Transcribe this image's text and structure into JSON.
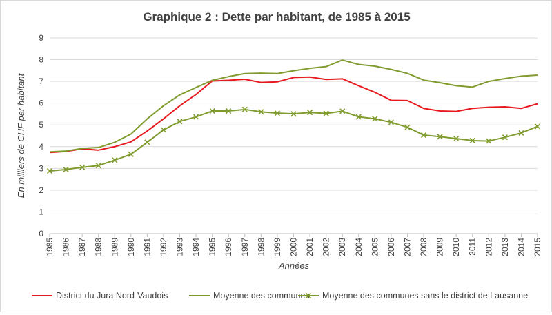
{
  "chart_data": {
    "type": "line",
    "title": "Graphique 2 : Dette par habitant, de 1985 à 2015",
    "xlabel": "Années",
    "ylabel": "En milliers de CHF par habitant",
    "ylim": [
      0,
      9
    ],
    "yticks": [
      0,
      1,
      2,
      3,
      4,
      5,
      6,
      7,
      8,
      9
    ],
    "grid": "horizontal",
    "legend_position": "bottom",
    "categories": [
      "1985",
      "1986",
      "1987",
      "1988",
      "1989",
      "1990",
      "1991",
      "1992",
      "1993",
      "1994",
      "1995",
      "1996",
      "1997",
      "1998",
      "1999",
      "2000",
      "2001",
      "2002",
      "2003",
      "2004",
      "2005",
      "2006",
      "2007",
      "2008",
      "2009",
      "2010",
      "2011",
      "2012",
      "2013",
      "2014",
      "2015"
    ],
    "series": [
      {
        "name": "District du Jura Nord-Vaudois",
        "color": "#e8191e",
        "marker": "none",
        "values": [
          3.73,
          3.78,
          3.9,
          3.84,
          4.0,
          4.22,
          4.72,
          5.28,
          5.88,
          6.4,
          7.02,
          7.05,
          7.1,
          6.95,
          6.98,
          7.18,
          7.2,
          7.09,
          7.12,
          6.8,
          6.5,
          6.13,
          6.12,
          5.76,
          5.64,
          5.62,
          5.76,
          5.81,
          5.83,
          5.76,
          5.97
        ]
      },
      {
        "name": "Moyenne des communes",
        "color": "#7f9b2e",
        "marker": "none",
        "values": [
          3.76,
          3.8,
          3.92,
          3.96,
          4.2,
          4.58,
          5.28,
          5.88,
          6.38,
          6.72,
          7.05,
          7.22,
          7.36,
          7.38,
          7.36,
          7.49,
          7.6,
          7.68,
          7.98,
          7.78,
          7.7,
          7.55,
          7.37,
          7.06,
          6.94,
          6.8,
          6.74,
          7.0,
          7.13,
          7.24,
          7.29
        ]
      },
      {
        "name": "Moyenne des communes sans le district de Lausanne",
        "color": "#7f9b2e",
        "marker": "x",
        "values": [
          2.88,
          2.95,
          3.05,
          3.13,
          3.38,
          3.65,
          4.2,
          4.77,
          5.16,
          5.37,
          5.64,
          5.64,
          5.71,
          5.6,
          5.54,
          5.51,
          5.57,
          5.53,
          5.63,
          5.37,
          5.28,
          5.12,
          4.89,
          4.53,
          4.46,
          4.37,
          4.28,
          4.26,
          4.43,
          4.63,
          4.93
        ]
      }
    ]
  }
}
